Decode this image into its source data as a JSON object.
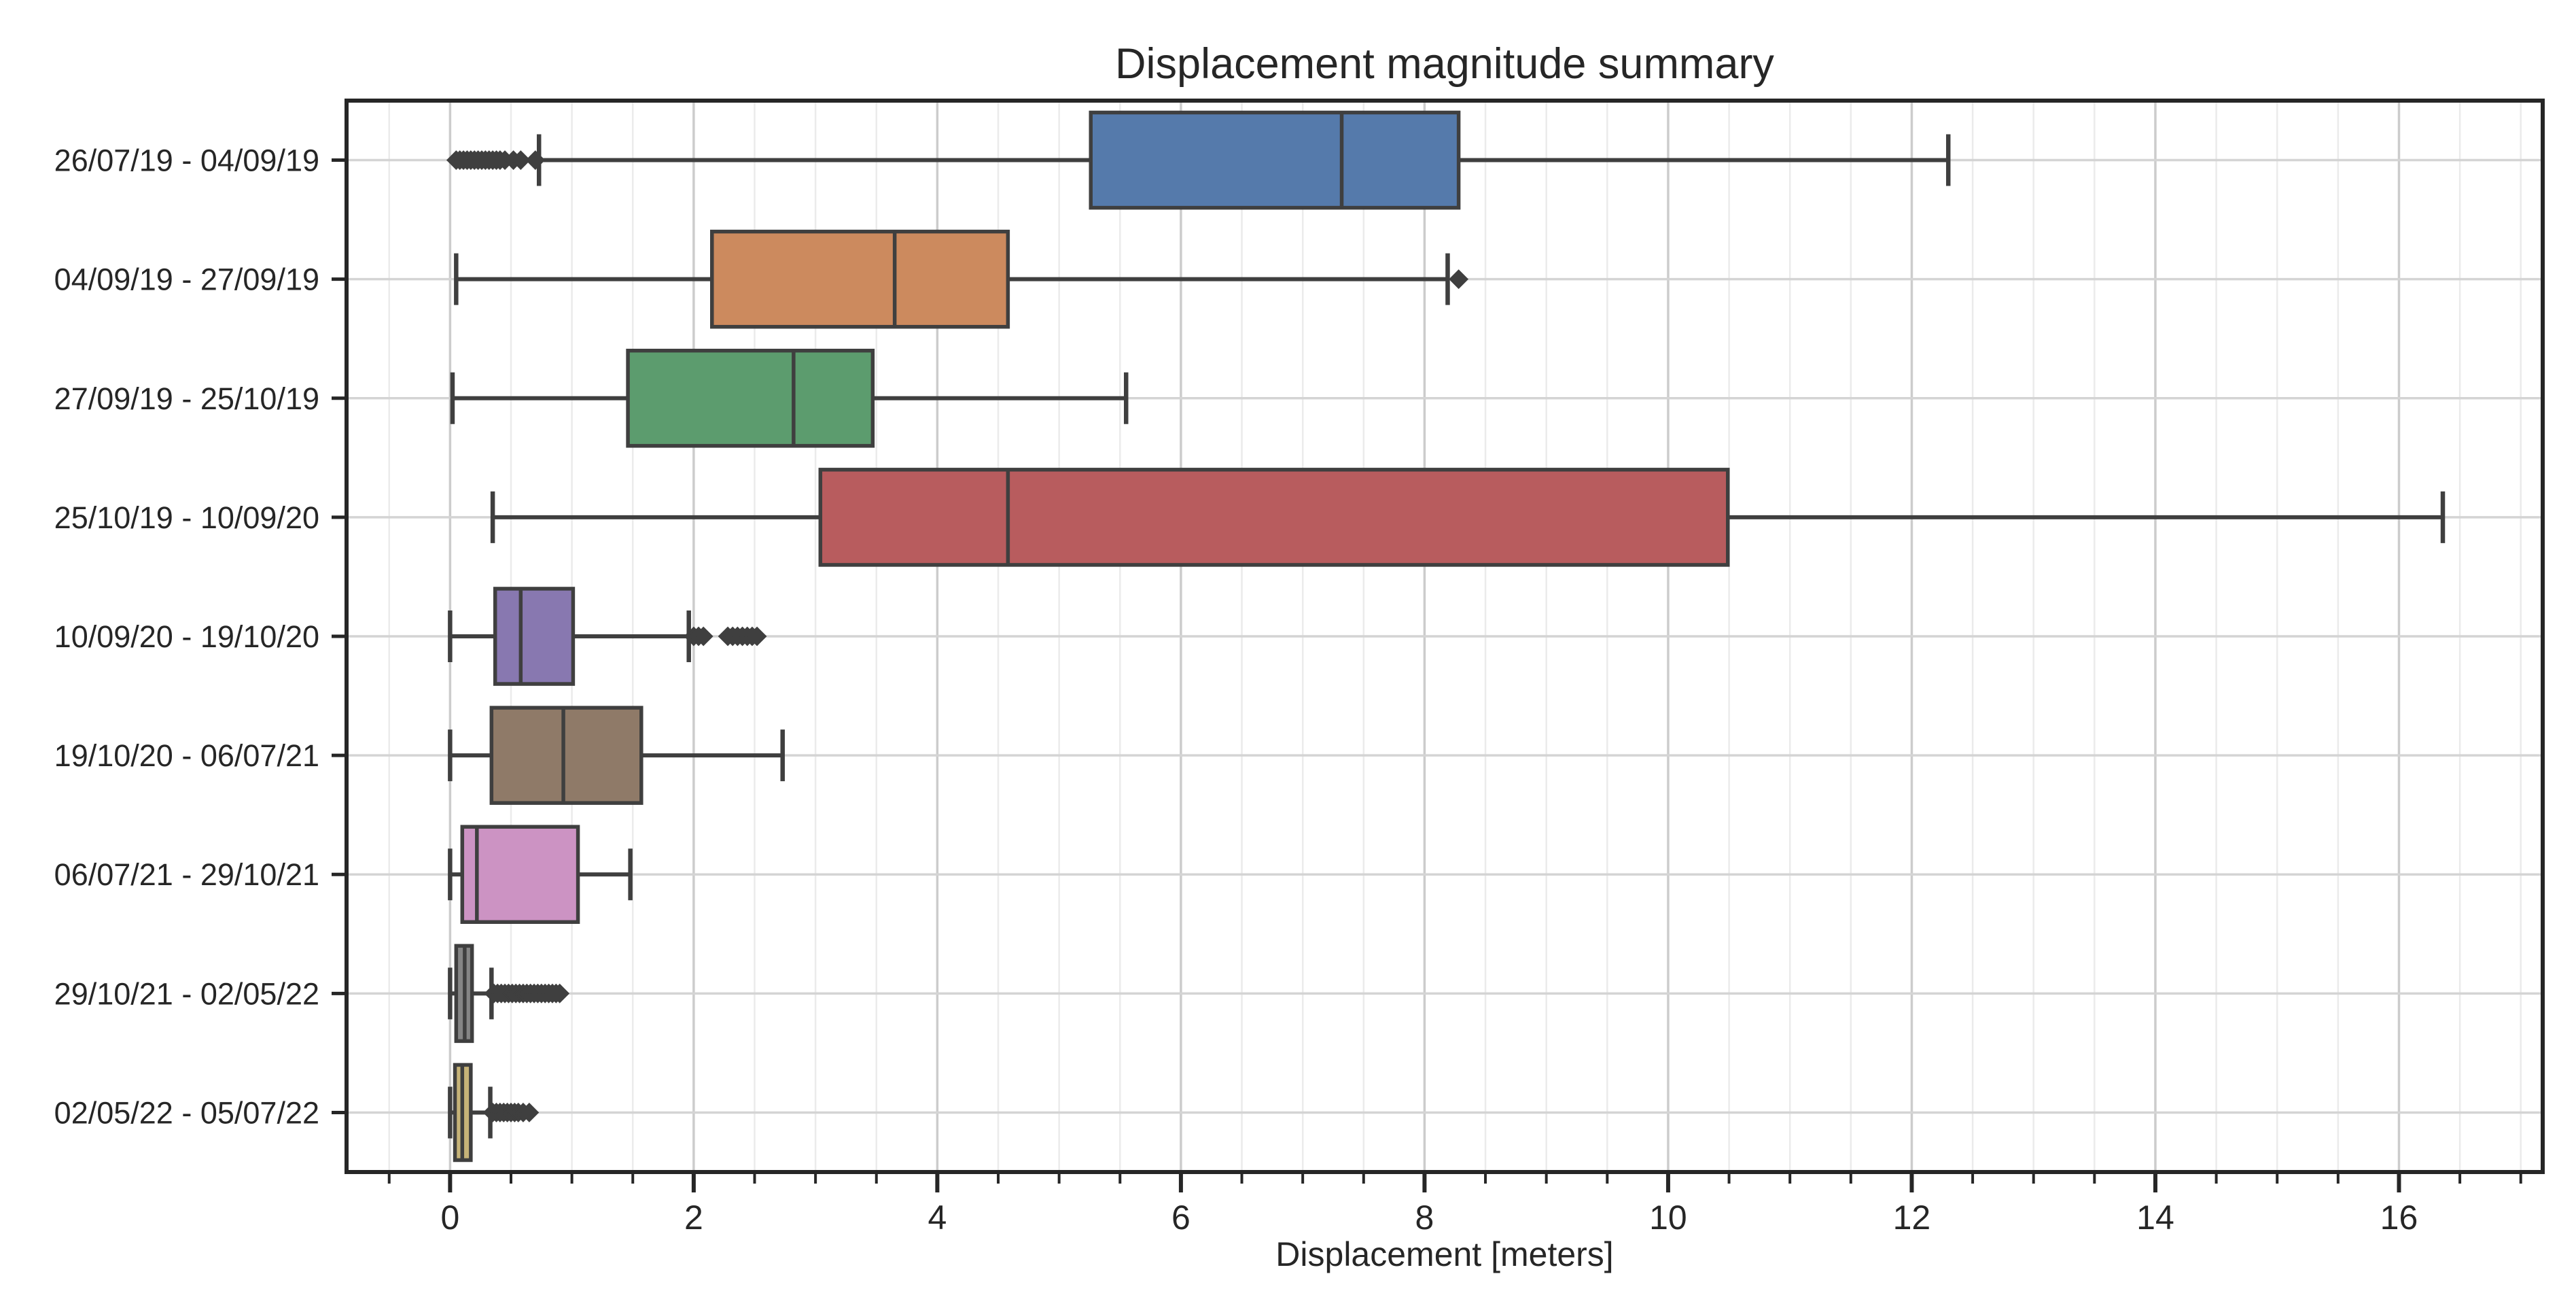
{
  "page": {
    "title": "Displacement magnitude summary",
    "xlabel": "Displacement [meters]"
  },
  "chart_data": {
    "type": "box",
    "orientation": "horizontal",
    "title": "Displacement magnitude summary",
    "xlabel": "Displacement [meters]",
    "ylabel": "",
    "xlim": [
      -0.85,
      17.18
    ],
    "x_major_ticks": [
      0,
      2,
      4,
      6,
      8,
      10,
      12,
      14,
      16
    ],
    "x_major_tick_labels": [
      "0",
      "2",
      "4",
      "6",
      "8",
      "10",
      "12",
      "14",
      "16"
    ],
    "x_minor_tick_step": 0.5,
    "grid": "vertical-minor-and-major-plus-row-lines",
    "legend": "none",
    "categories": [
      "26/07/19 - 04/09/19",
      "04/09/19 - 27/09/19",
      "27/09/19 - 25/10/19",
      "25/10/19 - 10/09/20",
      "10/09/20 - 19/10/20",
      "19/10/20 - 06/07/21",
      "06/07/21 - 29/10/21",
      "29/10/21 - 02/05/22",
      "02/05/22 - 05/07/22"
    ],
    "series": [
      {
        "label": "26/07/19 - 04/09/19",
        "color": "#557AAB",
        "whislo": 0.73,
        "q1": 5.26,
        "med": 7.32,
        "q3": 8.28,
        "whishi": 12.3,
        "fliers": [
          0.05,
          0.08,
          0.11,
          0.14,
          0.17,
          0.2,
          0.23,
          0.26,
          0.29,
          0.32,
          0.35,
          0.38,
          0.41,
          0.45,
          0.52,
          0.58,
          0.7
        ]
      },
      {
        "label": "04/09/19 - 27/09/19",
        "color": "#CC8A5E",
        "whislo": 0.05,
        "q1": 2.15,
        "med": 3.65,
        "q3": 4.58,
        "whishi": 8.19,
        "fliers": [
          8.28
        ]
      },
      {
        "label": "27/09/19 - 25/10/19",
        "color": "#5C9C6E",
        "whislo": 0.02,
        "q1": 1.46,
        "med": 2.82,
        "q3": 3.47,
        "whishi": 5.55,
        "fliers": []
      },
      {
        "label": "25/10/19 - 10/09/20",
        "color": "#B85C5E",
        "whislo": 0.35,
        "q1": 3.04,
        "med": 4.58,
        "q3": 10.49,
        "whishi": 16.36,
        "fliers": []
      },
      {
        "label": "10/09/20 - 19/10/20",
        "color": "#8878B0",
        "whislo": 0.0,
        "q1": 0.37,
        "med": 0.58,
        "q3": 1.01,
        "whishi": 1.96,
        "fliers": [
          2.0,
          2.04,
          2.08,
          2.28,
          2.32,
          2.36,
          2.4,
          2.44,
          2.48,
          2.52
        ]
      },
      {
        "label": "19/10/20 - 06/07/21",
        "color": "#8F7A68",
        "whislo": 0.0,
        "q1": 0.34,
        "med": 0.93,
        "q3": 1.57,
        "whishi": 2.73,
        "fliers": []
      },
      {
        "label": "06/07/21 - 29/10/21",
        "color": "#CC93C3",
        "whislo": 0.0,
        "q1": 0.1,
        "med": 0.22,
        "q3": 1.05,
        "whishi": 1.48,
        "fliers": []
      },
      {
        "label": "29/10/21 - 02/05/22",
        "color": "#858585",
        "whislo": 0.0,
        "q1": 0.05,
        "med": 0.12,
        "q3": 0.18,
        "whishi": 0.34,
        "fliers": [
          0.36,
          0.39,
          0.42,
          0.45,
          0.48,
          0.51,
          0.54,
          0.57,
          0.6,
          0.63,
          0.66,
          0.69,
          0.72,
          0.75,
          0.78,
          0.81,
          0.84,
          0.87,
          0.9
        ]
      },
      {
        "label": "02/05/22 - 05/07/22",
        "color": "#C6B378",
        "whislo": 0.0,
        "q1": 0.04,
        "med": 0.1,
        "q3": 0.17,
        "whishi": 0.33,
        "fliers": [
          0.35,
          0.38,
          0.41,
          0.44,
          0.47,
          0.5,
          0.53,
          0.56,
          0.6,
          0.65
        ]
      }
    ],
    "style": {
      "background": "#ffffff",
      "edge_color": "#3f3f3f",
      "spine_color": "#262626",
      "grid_minor_color": "#ebebeb",
      "grid_major_color": "#cccccc",
      "row_grid_color": "#d4d4d4",
      "text_color": "#262626",
      "flier_marker": "diamond"
    }
  }
}
